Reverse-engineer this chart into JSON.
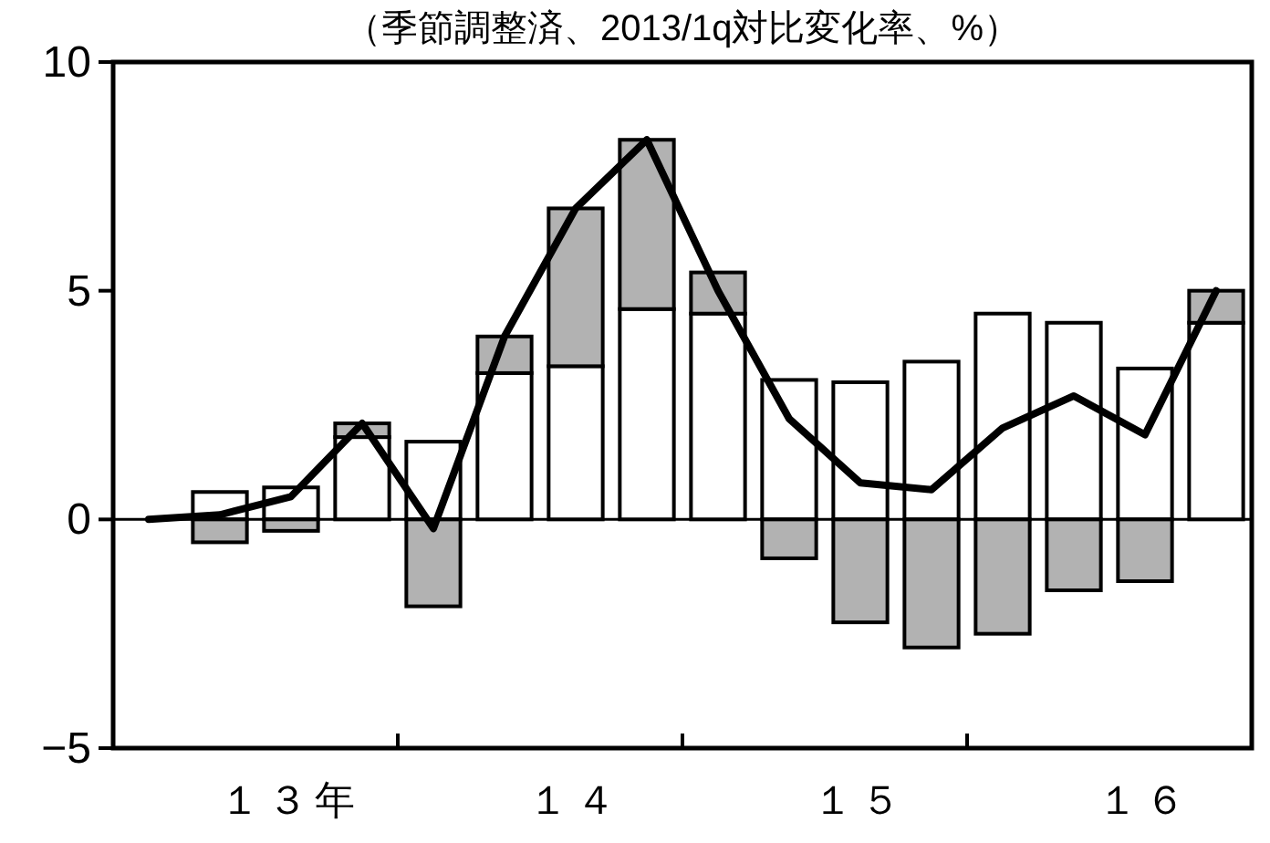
{
  "chart_data": {
    "type": "bar",
    "title": "（季節調整済、2013/1q対比変化率、%）",
    "categories": [
      null,
      null,
      "１３年",
      null,
      null,
      null,
      "１４",
      null,
      null,
      null,
      "１５",
      null,
      null,
      null,
      "１６",
      null
    ],
    "stacked": true,
    "series": [
      {
        "color": "#ffffff",
        "values": [
          null,
          0.6,
          0.7,
          1.8,
          1.7,
          3.2,
          3.35,
          4.6,
          4.5,
          3.05,
          3.0,
          3.45,
          4.5,
          4.3,
          3.3,
          4.3
        ]
      },
      {
        "color": "#b2b2b2",
        "values": [
          null,
          -0.5,
          -0.25,
          0.3,
          -1.9,
          0.8,
          3.45,
          3.7,
          0.9,
          -0.85,
          -2.25,
          -2.8,
          -2.5,
          -1.55,
          -1.35,
          0.7
        ]
      },
      {
        "type": "line",
        "color": "#000000",
        "values": [
          0,
          0.1,
          0.5,
          2.1,
          -0.2,
          4.0,
          6.8,
          8.3,
          5.0,
          2.2,
          0.8,
          0.65,
          2.0,
          2.7,
          1.85,
          5.0
        ]
      }
    ],
    "ylim": [
      -5,
      10
    ],
    "yticks": [
      {
        "value": -5,
        "label": "−5"
      },
      0,
      5,
      10
    ],
    "ref_lines": [
      {
        "axis": "y",
        "value": 0,
        "color": "#000000"
      }
    ]
  }
}
